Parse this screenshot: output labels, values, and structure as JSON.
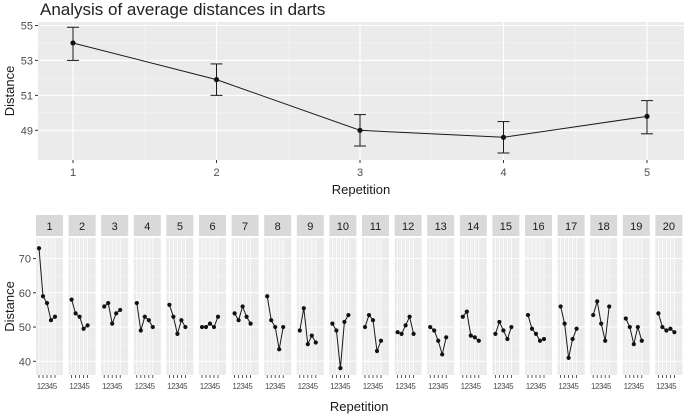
{
  "chart_data": [
    {
      "type": "line",
      "title": "Analysis of average distances in darts",
      "xlabel": "Repetition",
      "ylabel": "Distance",
      "x": [
        1,
        2,
        3,
        4,
        5
      ],
      "x_tick_labels": [
        "1",
        "2",
        "3",
        "4",
        "5"
      ],
      "values": [
        54.0,
        51.9,
        49.0,
        48.6,
        49.8
      ],
      "error_low": [
        53.0,
        51.0,
        48.1,
        47.7,
        48.8
      ],
      "error_high": [
        54.9,
        52.8,
        49.9,
        49.5,
        50.7
      ],
      "ylim": [
        47.3,
        55.2
      ],
      "y_ticks": [
        49,
        51,
        53,
        55
      ],
      "y_tick_labels": [
        "49",
        "51",
        "53",
        "55"
      ],
      "grid": true
    },
    {
      "type": "line",
      "subtype": "faceted",
      "xlabel": "Repetition",
      "ylabel": "Distance",
      "x_tick_labels": [
        "1",
        "2",
        "3",
        "4",
        "5"
      ],
      "ylim": [
        36,
        76
      ],
      "y_ticks": [
        40,
        50,
        60,
        70
      ],
      "y_tick_labels": [
        "40",
        "50",
        "60",
        "70"
      ],
      "grid": true,
      "panels": [
        {
          "label": "1",
          "values": [
            73,
            59,
            57,
            52,
            53
          ]
        },
        {
          "label": "2",
          "values": [
            58,
            54,
            53,
            49.5,
            50.5
          ]
        },
        {
          "label": "3",
          "values": [
            56,
            57,
            51,
            54,
            55
          ]
        },
        {
          "label": "4",
          "values": [
            57,
            49,
            53,
            52,
            50
          ]
        },
        {
          "label": "5",
          "values": [
            56.5,
            53,
            48,
            52,
            50
          ]
        },
        {
          "label": "6",
          "values": [
            50,
            50,
            51,
            50,
            53
          ]
        },
        {
          "label": "7",
          "values": [
            54,
            52,
            56,
            53,
            51
          ]
        },
        {
          "label": "8",
          "values": [
            59,
            52,
            50,
            43.5,
            50
          ]
        },
        {
          "label": "9",
          "values": [
            49,
            55.5,
            45,
            47.5,
            45.5
          ]
        },
        {
          "label": "10",
          "values": [
            51,
            49,
            38,
            51.5,
            53.5
          ]
        },
        {
          "label": "11",
          "values": [
            50,
            53.5,
            52,
            43,
            46
          ]
        },
        {
          "label": "12",
          "values": [
            48.5,
            48,
            50.5,
            53,
            48
          ]
        },
        {
          "label": "13",
          "values": [
            50,
            49,
            46,
            42,
            47
          ]
        },
        {
          "label": "14",
          "values": [
            53,
            54.5,
            47.5,
            47,
            46
          ]
        },
        {
          "label": "15",
          "values": [
            48,
            51.5,
            49,
            46.5,
            50
          ]
        },
        {
          "label": "16",
          "values": [
            53.5,
            49.5,
            48,
            46,
            46.5
          ]
        },
        {
          "label": "17",
          "values": [
            56,
            51,
            41,
            46.5,
            49.5
          ]
        },
        {
          "label": "18",
          "values": [
            53.5,
            57.5,
            51,
            46,
            56
          ]
        },
        {
          "label": "19",
          "values": [
            52.5,
            50,
            45,
            50,
            46
          ]
        },
        {
          "label": "20",
          "values": [
            54,
            50,
            49,
            49.5,
            48.5
          ]
        }
      ]
    }
  ]
}
